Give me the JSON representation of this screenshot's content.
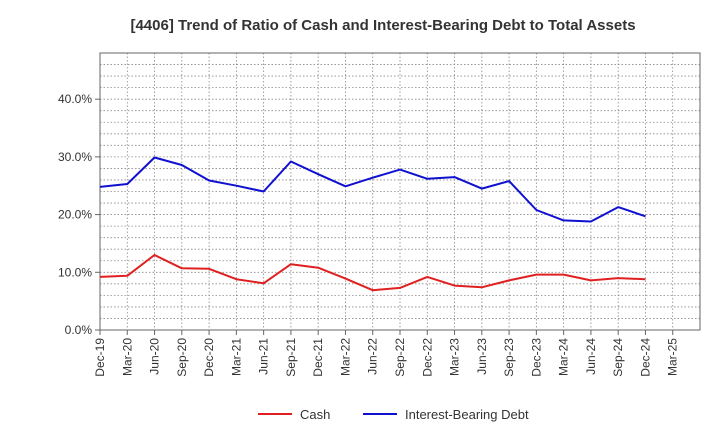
{
  "chart_data": {
    "type": "line",
    "title": "[4406]  Trend of Ratio of Cash and Interest-Bearing Debt to Total Assets",
    "xlabel": "",
    "ylabel": "",
    "categories": [
      "Dec-19",
      "Mar-20",
      "Jun-20",
      "Sep-20",
      "Dec-20",
      "Mar-21",
      "Jun-21",
      "Sep-21",
      "Dec-21",
      "Mar-22",
      "Jun-22",
      "Sep-22",
      "Dec-22",
      "Mar-23",
      "Jun-23",
      "Sep-23",
      "Dec-23",
      "Mar-24",
      "Jun-24",
      "Sep-24",
      "Dec-24",
      "Mar-25"
    ],
    "ylim": [
      0,
      48
    ],
    "yticks": [
      0,
      10,
      20,
      30,
      40
    ],
    "ytick_labels": [
      "0.0%",
      "10.0%",
      "20.0%",
      "30.0%",
      "40.0%"
    ],
    "grid": true,
    "legend_position": "bottom",
    "series": [
      {
        "name": "Cash",
        "color": "#e02020",
        "values": [
          9.2,
          9.4,
          13.0,
          10.7,
          10.6,
          8.8,
          8.1,
          11.4,
          10.8,
          8.9,
          6.9,
          7.3,
          9.2,
          7.7,
          7.4,
          8.6,
          9.6,
          9.6,
          8.6,
          9.0,
          8.8,
          null
        ]
      },
      {
        "name": "Interest-Bearing Debt",
        "color": "#1010d0",
        "values": [
          24.8,
          25.3,
          29.9,
          28.6,
          25.9,
          25.0,
          24.0,
          29.2,
          27.0,
          24.9,
          26.4,
          27.8,
          26.2,
          26.5,
          24.5,
          25.8,
          20.8,
          19.0,
          18.8,
          21.3,
          19.7,
          null
        ]
      }
    ]
  }
}
